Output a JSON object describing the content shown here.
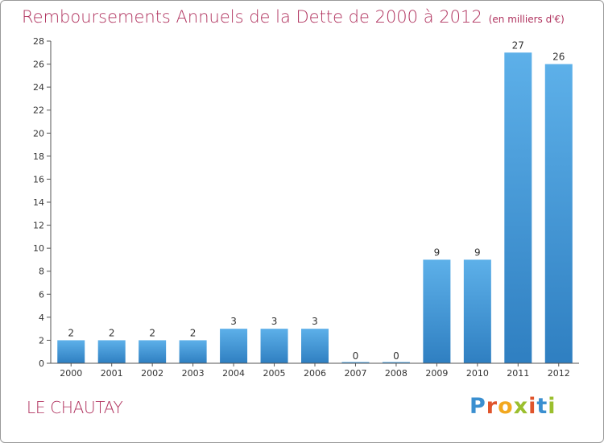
{
  "title": "Remboursements Annuels de la Dette de 2000 à 2012",
  "subtitle": "(en milliers d'€)",
  "commune": "LE CHAUTAY",
  "logo": {
    "letters": [
      "P",
      "r",
      "o",
      "x",
      "i",
      "t",
      "i"
    ],
    "colors": [
      "#3a8fd0",
      "#e0542b",
      "#f2a81f",
      "#9bbf2e",
      "#e0542b",
      "#3a8fd0",
      "#9bbf2e"
    ]
  },
  "colors": {
    "bar": "#3d93d4",
    "bar_light": "#5db0e9",
    "title": "#b0325e",
    "axis": "#555555",
    "grid": "#d8d8d8"
  },
  "chart_data": {
    "type": "bar",
    "title": "Remboursements Annuels de la Dette de 2000 à 2012",
    "subtitle": "(en milliers d'€)",
    "xlabel": "",
    "ylabel": "",
    "categories": [
      "2000",
      "2001",
      "2002",
      "2003",
      "2004",
      "2005",
      "2006",
      "2007",
      "2008",
      "2009",
      "2010",
      "2011",
      "2012"
    ],
    "values": [
      2,
      2,
      2,
      2,
      3,
      3,
      3,
      0,
      0,
      9,
      9,
      27,
      26
    ],
    "ylim": [
      0,
      28
    ],
    "yticks": [
      0,
      2,
      4,
      6,
      8,
      10,
      12,
      14,
      16,
      18,
      20,
      22,
      24,
      26,
      28
    ],
    "grid": false,
    "legend": "none"
  }
}
